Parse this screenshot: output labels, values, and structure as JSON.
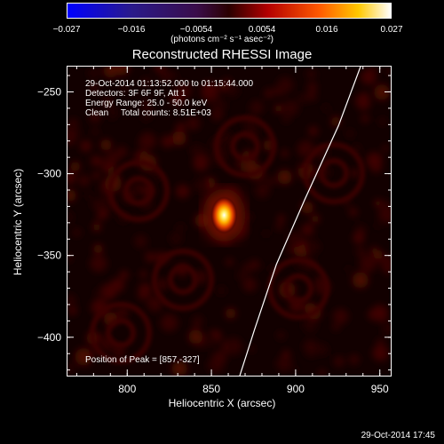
{
  "colorbar": {
    "ticks": [
      "−0.027",
      "−0.016",
      "−0.0054",
      "0.0054",
      "0.016",
      "0.027"
    ],
    "unit": "(photons cm⁻² s⁻¹ asec⁻²)"
  },
  "annotations": {
    "time_range": "29-Oct-2014 01:13:52.000 to 01:15:44.000",
    "detectors": "Detectors: 3F 6F 9F, Att 1",
    "energy": "Energy Range: 25.0 - 50.0 keV",
    "clean": "Clean     Total counts: 8.51E+03",
    "peak": "Position of Peak = [857,-327]"
  },
  "timestamp": "29-Oct-2014 17:45",
  "chart_data": {
    "type": "heatmap",
    "title": "Reconstructed RHESSI Image",
    "xlabel": "Heliocentric X (arcsec)",
    "ylabel": "Heliocentric Y (arcsec)",
    "xlim": [
      764,
      957
    ],
    "ylim": [
      -424,
      -234
    ],
    "xticks": [
      800,
      850,
      900,
      950
    ],
    "yticks": [
      -250,
      -300,
      -350,
      -400
    ],
    "colorbar_range": [
      -0.027,
      0.027
    ],
    "colormap": "fire",
    "source_peak": {
      "x": 857,
      "y": -327
    },
    "limb_curve": [
      {
        "x": 938,
        "y": -234
      },
      {
        "x": 925,
        "y": -270
      },
      {
        "x": 905,
        "y": -315
      },
      {
        "x": 888,
        "y": -355
      },
      {
        "x": 875,
        "y": -395
      },
      {
        "x": 866,
        "y": -424
      }
    ]
  }
}
